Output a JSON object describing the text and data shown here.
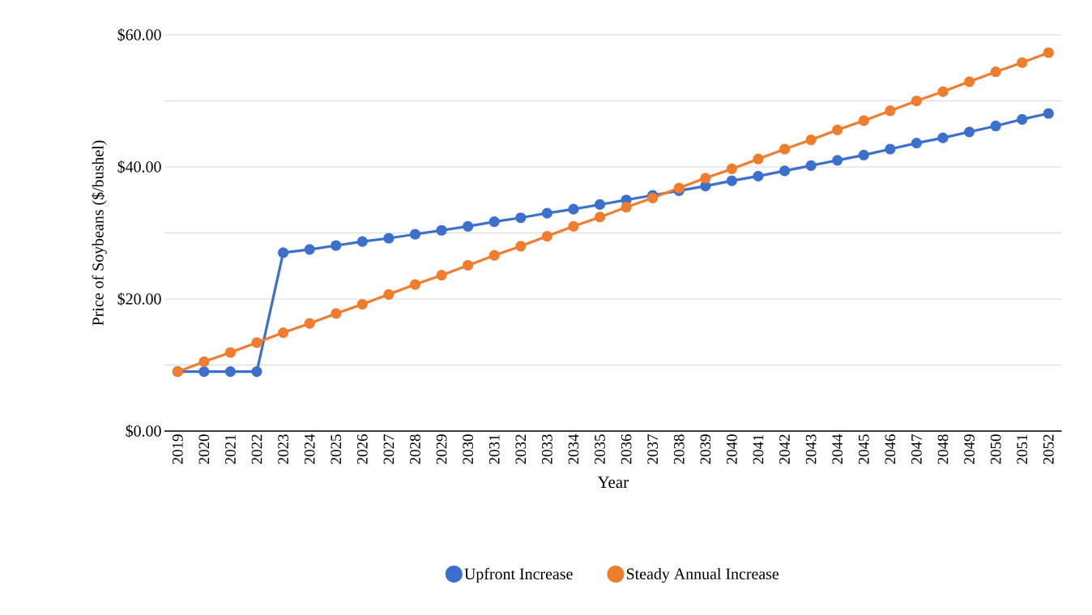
{
  "chart_data": {
    "type": "line",
    "xlabel": "Year",
    "ylabel": "Price of Soybeans ($/bushel)",
    "categories": [
      "2019",
      "2020",
      "2021",
      "2022",
      "2023",
      "2024",
      "2025",
      "2026",
      "2027",
      "2028",
      "2029",
      "2030",
      "2031",
      "2032",
      "2033",
      "2034",
      "2035",
      "2036",
      "2037",
      "2038",
      "2039",
      "2040",
      "2041",
      "2042",
      "2043",
      "2044",
      "2045",
      "2046",
      "2047",
      "2048",
      "2049",
      "2050",
      "2051",
      "2052"
    ],
    "ylim": [
      0,
      60
    ],
    "yticks": [
      {
        "value": 0,
        "label": "$0.00"
      },
      {
        "value": 10,
        "label": null
      },
      {
        "value": 20,
        "label": "$20.00"
      },
      {
        "value": 30,
        "label": null
      },
      {
        "value": 40,
        "label": "$40.00"
      },
      {
        "value": 50,
        "label": null
      },
      {
        "value": 60,
        "label": "$60.00"
      }
    ],
    "grid": "y",
    "legend": "bottom",
    "marker": "circle",
    "line_style": "solid",
    "series": [
      {
        "name": "Upfront Increase",
        "color": "#3d6fcc",
        "values": [
          9.0,
          9.0,
          9.0,
          9.0,
          27.0,
          27.5,
          28.1,
          28.7,
          29.2,
          29.8,
          30.4,
          31.0,
          31.7,
          32.3,
          33.0,
          33.6,
          34.3,
          35.0,
          35.7,
          36.4,
          37.1,
          37.9,
          38.6,
          39.4,
          40.2,
          41.0,
          41.8,
          42.7,
          43.6,
          44.4,
          45.3,
          46.2,
          47.2,
          48.1
        ]
      },
      {
        "name": "Steady Annual Increase",
        "color": "#f07d2d",
        "values": [
          9.0,
          10.5,
          11.9,
          13.4,
          14.9,
          16.3,
          17.8,
          19.2,
          20.7,
          22.2,
          23.6,
          25.1,
          26.6,
          28.0,
          29.5,
          31.0,
          32.4,
          33.9,
          35.3,
          36.8,
          38.3,
          39.7,
          41.2,
          42.7,
          44.1,
          45.6,
          47.0,
          48.5,
          50.0,
          51.4,
          52.9,
          54.4,
          55.8,
          57.3
        ]
      }
    ]
  }
}
